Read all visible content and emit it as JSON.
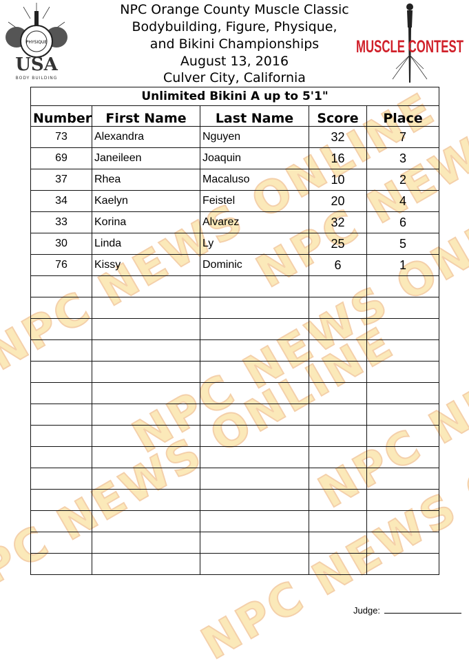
{
  "header": {
    "lines": [
      "NPC Orange County Muscle Classic",
      "Bodybuilding, Figure, Physique,",
      "and Bikini Championships",
      "August 13, 2016",
      "Culver City, California"
    ]
  },
  "logos": {
    "left": {
      "text_top": "NATIONAL",
      "text_mid": "PHYSIQUE",
      "text_bottom": "COMMITTEE",
      "big": "USA",
      "small": "BODY BUILDING"
    },
    "right": {
      "script": "Jon Lindsay's",
      "word1": "MUSCLE",
      "word2": "CONTEST",
      "color": "#d0202a"
    }
  },
  "watermark": "NPC NEWS ONLINE",
  "table": {
    "title": "Unlimited Bikini A up to 5'1\"",
    "columns": [
      "Number",
      "First Name",
      "Last Name",
      "Score",
      "Place"
    ],
    "rows": [
      [
        "73",
        "Alexandra",
        "Nguyen",
        "32",
        "7"
      ],
      [
        "69",
        "Janeileen",
        "Joaquin",
        "16",
        "3"
      ],
      [
        "37",
        "Rhea",
        "Macaluso",
        "10",
        "2"
      ],
      [
        "34",
        "Kaelyn",
        "Feistel",
        "20",
        "4"
      ],
      [
        "33",
        "Korina",
        "Alvarez",
        "32",
        "6"
      ],
      [
        "30",
        "Linda",
        "Ly",
        "25",
        "5"
      ],
      [
        "76",
        "Kissy",
        "Dominic",
        "6",
        "1"
      ]
    ],
    "empty_rows": 14
  },
  "footer": {
    "judge_label": "Judge:"
  }
}
